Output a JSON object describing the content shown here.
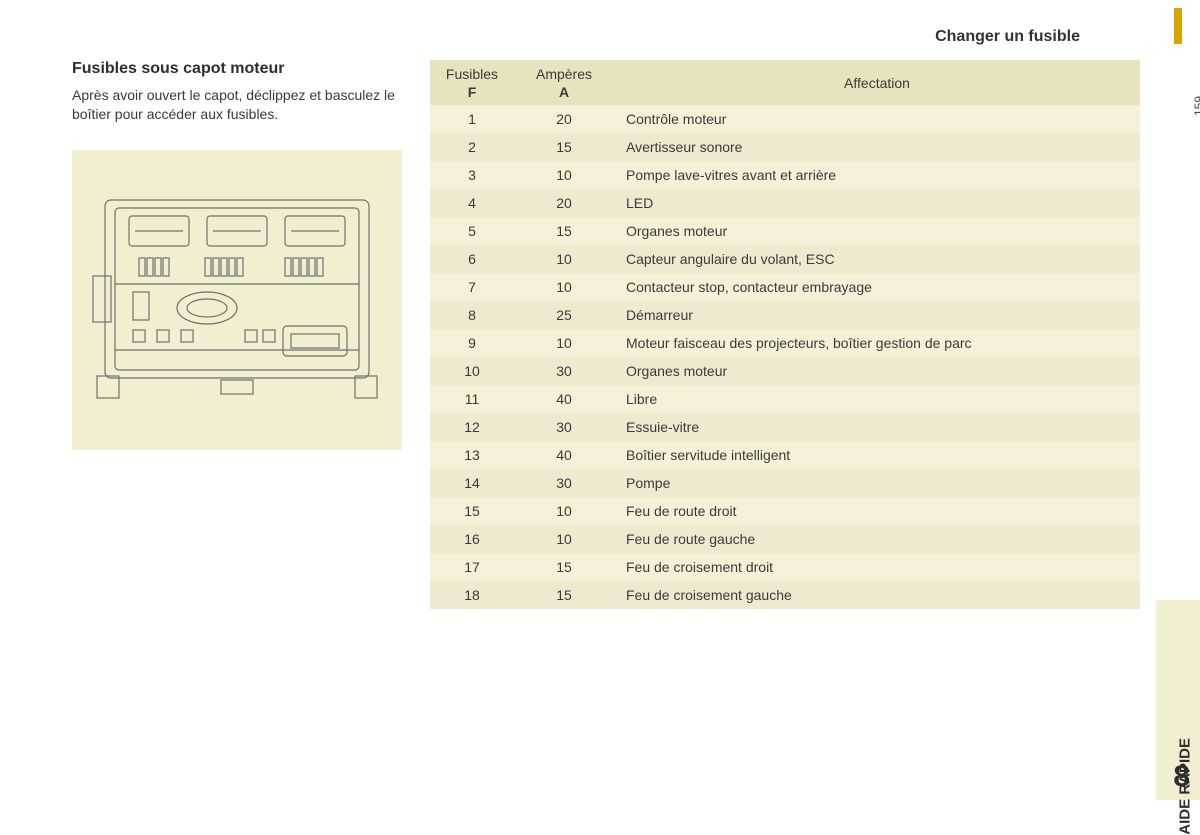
{
  "page": {
    "title": "Changer un fusible",
    "number": "159",
    "tab_label": "AIDE RAPIDE",
    "tab_number": "8"
  },
  "section": {
    "heading": "Fusibles sous capot moteur",
    "body": "Après avoir ouvert le capot, déclippez et basculez le boîtier pour accéder aux fusibles."
  },
  "diagram": {
    "background_color": "#f2efd1",
    "stroke_color": "#6f6f6f"
  },
  "table": {
    "header_bg": "#e7e3be",
    "row_odd_bg": "#f4f1d8",
    "row_even_bg": "#eeead0",
    "columns": {
      "fuse": {
        "line1": "Fusibles",
        "line2": "F"
      },
      "amp": {
        "line1": "Ampères",
        "line2": "A"
      },
      "affectation": "Affectation"
    },
    "rows": [
      {
        "f": "1",
        "a": "20",
        "aff": "Contrôle moteur"
      },
      {
        "f": "2",
        "a": "15",
        "aff": "Avertisseur sonore"
      },
      {
        "f": "3",
        "a": "10",
        "aff": "Pompe lave-vitres avant et arrière"
      },
      {
        "f": "4",
        "a": "20",
        "aff": "LED"
      },
      {
        "f": "5",
        "a": "15",
        "aff": "Organes moteur"
      },
      {
        "f": "6",
        "a": "10",
        "aff": "Capteur angulaire du volant, ESC"
      },
      {
        "f": "7",
        "a": "10",
        "aff": "Contacteur stop, contacteur embrayage"
      },
      {
        "f": "8",
        "a": "25",
        "aff": "Démarreur"
      },
      {
        "f": "9",
        "a": "10",
        "aff": "Moteur faisceau des projecteurs, boîtier gestion de parc"
      },
      {
        "f": "10",
        "a": "30",
        "aff": "Organes moteur"
      },
      {
        "f": "11",
        "a": "40",
        "aff": "Libre"
      },
      {
        "f": "12",
        "a": "30",
        "aff": "Essuie-vitre"
      },
      {
        "f": "13",
        "a": "40",
        "aff": "Boîtier servitude intelligent"
      },
      {
        "f": "14",
        "a": "30",
        "aff": "Pompe"
      },
      {
        "f": "15",
        "a": "10",
        "aff": "Feu de route droit"
      },
      {
        "f": "16",
        "a": "10",
        "aff": "Feu de route gauche"
      },
      {
        "f": "17",
        "a": "15",
        "aff": "Feu de croisement droit"
      },
      {
        "f": "18",
        "a": "15",
        "aff": "Feu de croisement gauche"
      }
    ]
  }
}
